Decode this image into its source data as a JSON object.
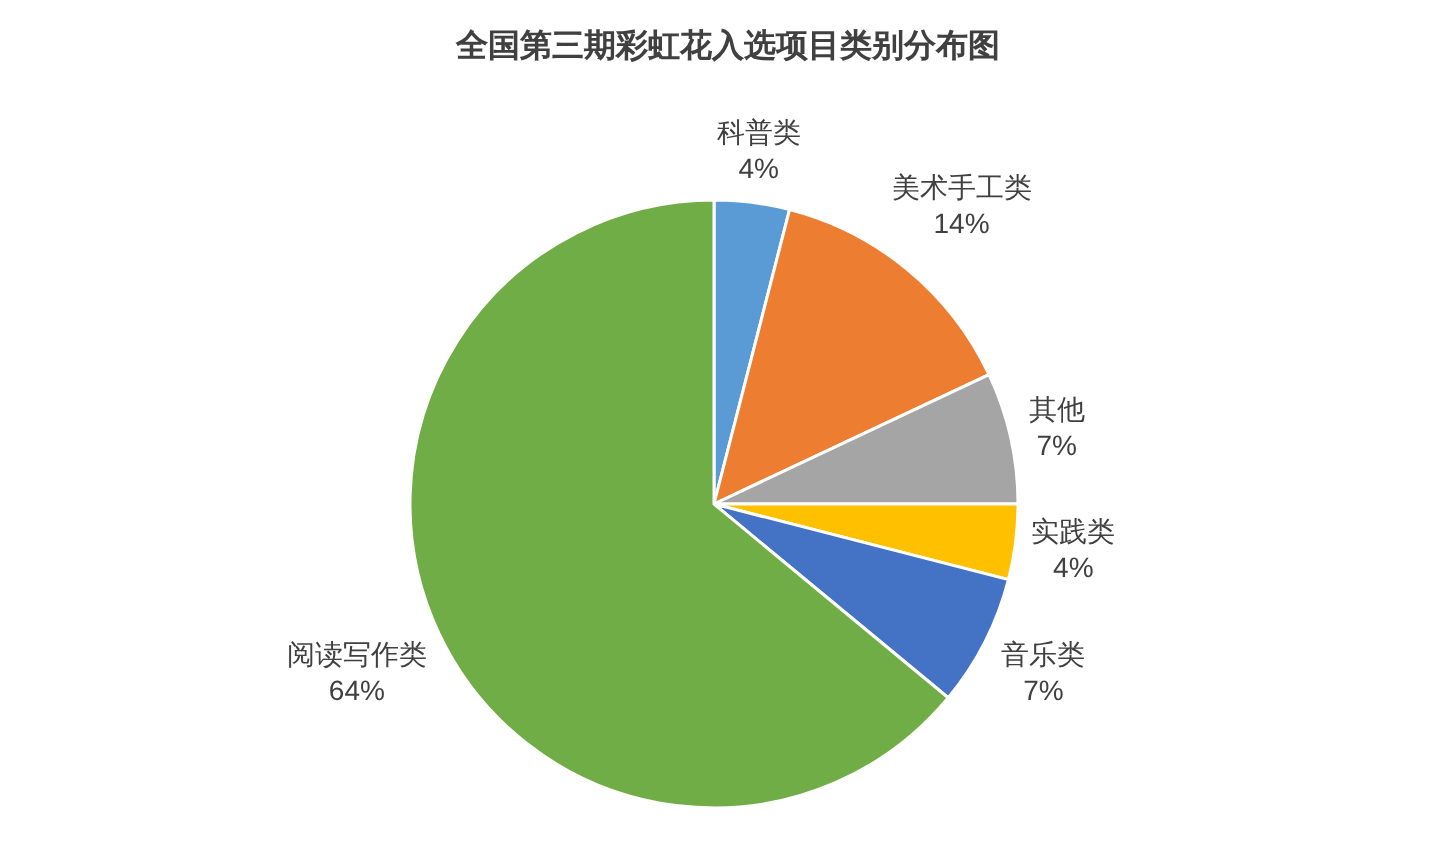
{
  "chart_data": {
    "type": "pie",
    "title": "全国第三期彩虹花入选项目类别分布图",
    "categories": [
      "科普类",
      "美术手工类",
      "其他",
      "实践类",
      "音乐类",
      "阅读写作类"
    ],
    "values": [
      4,
      14,
      7,
      4,
      7,
      64
    ],
    "colors": [
      "#5b9bd5",
      "#ed7d31",
      "#a5a5a5",
      "#ffc000",
      "#4472c4",
      "#70ad47"
    ],
    "value_labels": [
      "4%",
      "14%",
      "7%",
      "4%",
      "7%",
      "64%"
    ]
  }
}
